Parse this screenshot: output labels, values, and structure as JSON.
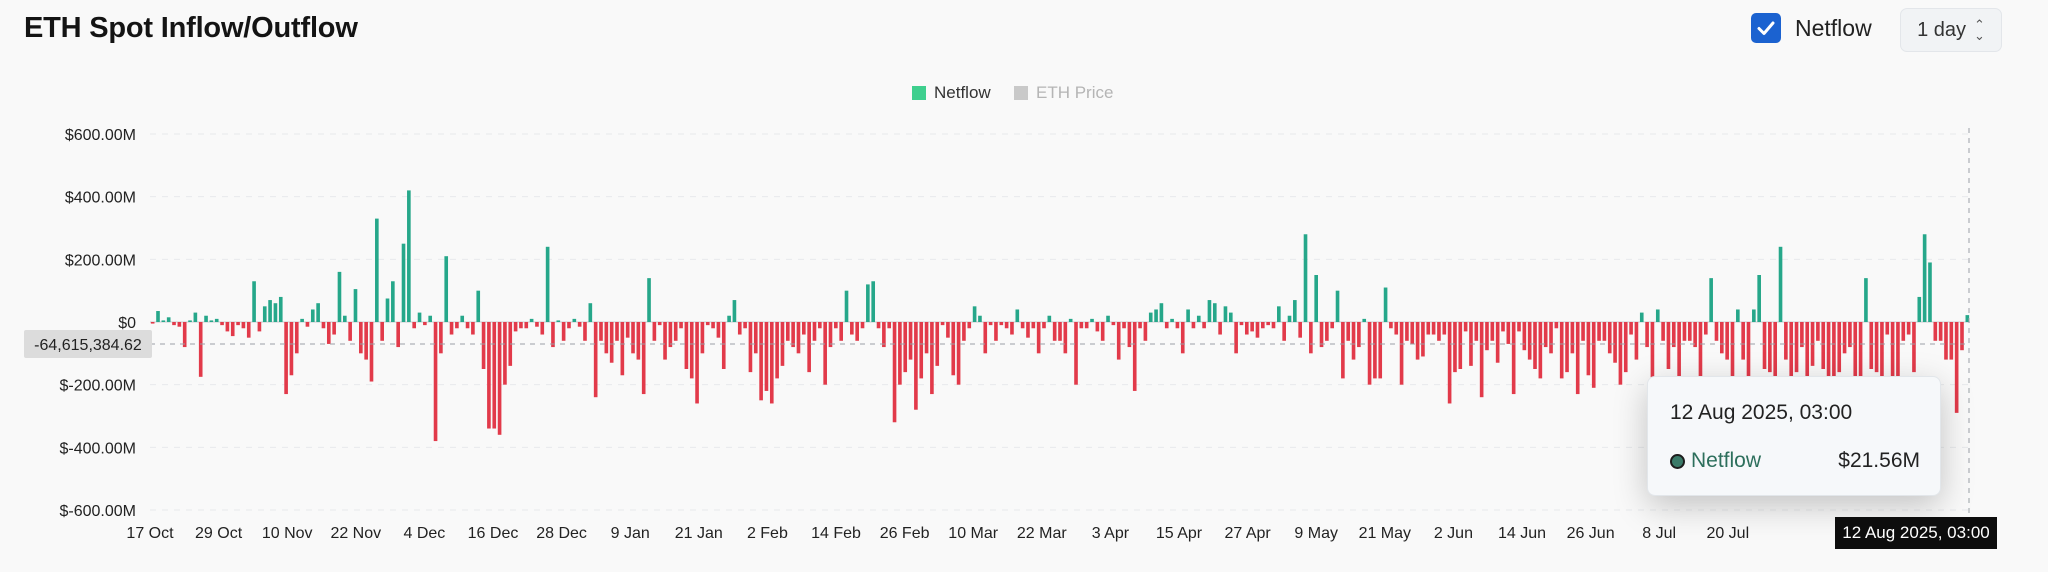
{
  "header": {
    "title": "ETH Spot Inflow/Outflow",
    "netflow_label": "Netflow",
    "netflow_checked": true,
    "interval": "1 day"
  },
  "colors": {
    "positive": "#26a78a",
    "negative": "#e23a4a",
    "legend_netflow": "#3ecf8e",
    "legend_price": "#c9c9c9",
    "checkbox": "#1b62d0"
  },
  "tooltip": {
    "date": "12 Aug 2025, 03:00",
    "series": "Netflow",
    "value": "$21.56M"
  },
  "crosshair": {
    "y_label": "-64,615,384.62",
    "x_label": "12 Aug 2025, 03:00"
  },
  "chart_data": {
    "type": "bar",
    "legend": [
      {
        "name": "Netflow",
        "active": true
      },
      {
        "name": "ETH Price",
        "active": false
      }
    ],
    "legend_position": "top-center",
    "grid": true,
    "ylim": [
      -600,
      600
    ],
    "yunit": "M USD",
    "yticks": [
      "$600.00M",
      "$400.00M",
      "$200.00M",
      "$0",
      "$-200.00M",
      "$-400.00M",
      "$-600.00M"
    ],
    "xticks": [
      "17 Oct",
      "29 Oct",
      "10 Nov",
      "22 Nov",
      "4 Dec",
      "16 Dec",
      "28 Dec",
      "9 Jan",
      "21 Jan",
      "2 Feb",
      "14 Feb",
      "26 Feb",
      "10 Mar",
      "22 Mar",
      "3 Apr",
      "15 Apr",
      "27 Apr",
      "9 May",
      "21 May",
      "2 Jun",
      "14 Jun",
      "26 Jun",
      "8 Jul",
      "20 Jul"
    ],
    "x_start": "17 Oct 2024",
    "x_end": "12 Aug 2025",
    "series": [
      {
        "name": "Netflow",
        "values": [
          -5,
          35,
          5,
          15,
          -10,
          -15,
          -80,
          5,
          30,
          -175,
          20,
          5,
          10,
          -10,
          -30,
          -45,
          -10,
          -20,
          -50,
          130,
          -30,
          50,
          70,
          60,
          80,
          -230,
          -170,
          -100,
          10,
          -15,
          40,
          60,
          -20,
          -70,
          -40,
          160,
          20,
          -60,
          105,
          -100,
          -120,
          -190,
          330,
          -60,
          75,
          130,
          -80,
          250,
          420,
          -20,
          30,
          -10,
          20,
          -380,
          -100,
          210,
          -40,
          -20,
          20,
          -20,
          -40,
          100,
          -150,
          -340,
          -340,
          -360,
          -200,
          -140,
          -30,
          -20,
          -20,
          10,
          -15,
          -40,
          240,
          -80,
          5,
          -60,
          -20,
          10,
          -15,
          -60,
          60,
          -240,
          -60,
          -100,
          -130,
          -60,
          -170,
          -50,
          -100,
          -120,
          -230,
          140,
          -60,
          -10,
          -120,
          -80,
          -60,
          -20,
          -150,
          -180,
          -260,
          -100,
          -10,
          -20,
          -50,
          -150,
          20,
          70,
          -40,
          -20,
          -160,
          -100,
          -250,
          -220,
          -260,
          -180,
          -140,
          -60,
          -80,
          -100,
          -40,
          -160,
          -60,
          -20,
          -200,
          -80,
          -20,
          -60,
          100,
          -40,
          -60,
          -20,
          120,
          130,
          -20,
          -80,
          -20,
          -320,
          -200,
          -160,
          -120,
          -280,
          -180,
          -100,
          -230,
          -140,
          -10,
          -50,
          -170,
          -200,
          -60,
          -20,
          50,
          20,
          -100,
          -10,
          -60,
          -10,
          -20,
          -40,
          40,
          -20,
          -50,
          -20,
          -100,
          -20,
          20,
          -60,
          -60,
          -100,
          10,
          -200,
          -20,
          -20,
          10,
          -30,
          -60,
          20,
          -10,
          -120,
          -20,
          -80,
          -220,
          -20,
          -60,
          30,
          40,
          60,
          -20,
          10,
          -20,
          -100,
          40,
          -20,
          20,
          -20,
          70,
          60,
          -40,
          50,
          30,
          -100,
          -10,
          -40,
          -30,
          -50,
          -20,
          -10,
          -20,
          50,
          -60,
          20,
          70,
          -50,
          280,
          -100,
          150,
          -80,
          -60,
          -20,
          100,
          -180,
          -60,
          -120,
          -80,
          10,
          -200,
          -180,
          -180,
          110,
          -20,
          -40,
          -200,
          -60,
          -70,
          -120,
          -110,
          -40,
          -40,
          -60,
          -40,
          -260,
          -160,
          -150,
          -30,
          -140,
          -60,
          -240,
          -90,
          -60,
          -130,
          -30,
          -70,
          -230,
          -30,
          -90,
          -120,
          -150,
          -180,
          -80,
          -100,
          -20,
          -180,
          -160,
          -100,
          -230,
          -60,
          -170,
          -210,
          -60,
          -60,
          -100,
          -130,
          -200,
          -160,
          -40,
          -120,
          30,
          -80,
          -200,
          40,
          -60,
          -150,
          -80,
          -260,
          -60,
          -60,
          -80,
          -300,
          -40,
          140,
          -60,
          -100,
          -120,
          -200,
          40,
          -120,
          -240,
          40,
          150,
          -150,
          -160,
          -260,
          240,
          -120,
          -200,
          -160,
          -80,
          -180,
          -140,
          -60,
          -150,
          -240,
          -240,
          -160,
          -100,
          -80,
          -260,
          -200,
          140,
          -150,
          -160,
          -200,
          -40,
          -180,
          -200,
          -60,
          -40,
          -160,
          80,
          280,
          190,
          -60,
          -60,
          -120,
          -120,
          -290,
          -90,
          22
        ]
      }
    ]
  }
}
